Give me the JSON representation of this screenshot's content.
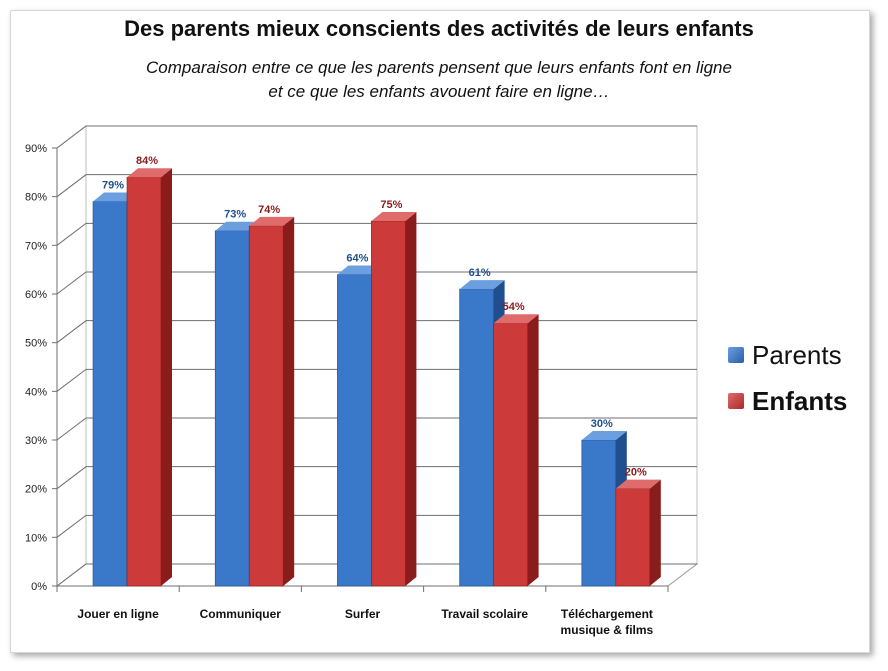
{
  "chart_data": {
    "type": "bar",
    "title": "Des parents mieux conscients des activités de leurs enfants",
    "subtitle_line1": "Comparaison entre ce que les parents pensent que leurs enfants font en ligne",
    "subtitle_line2": "et ce que les enfants avouent faire en ligne…",
    "categories": [
      [
        "Jouer en ligne"
      ],
      [
        "Communiquer"
      ],
      [
        "Surfer"
      ],
      [
        "Travail scolaire"
      ],
      [
        "Téléchargement",
        "musique & films"
      ]
    ],
    "series": [
      {
        "name": "Parents",
        "values": [
          79,
          73,
          64,
          61,
          30
        ],
        "labels": [
          "79%",
          "73%",
          "64%",
          "61%",
          "30%"
        ],
        "color": "#3a78c9",
        "side_color": "#1f4f8e",
        "top_color": "#6b9fe0",
        "label_color": "#1f4f8e"
      },
      {
        "name": "Enfants",
        "values": [
          84,
          74,
          75,
          54,
          20
        ],
        "labels": [
          "84%",
          "74%",
          "75%",
          "54%",
          "20%"
        ],
        "color": "#cc3a3a",
        "side_color": "#8a1c1c",
        "top_color": "#e06b6b",
        "label_color": "#8a1c1c"
      }
    ],
    "ylim": [
      0,
      90
    ],
    "yticks": [
      "0%",
      "10%",
      "20%",
      "30%",
      "40%",
      "50%",
      "60%",
      "70%",
      "80%",
      "90%"
    ],
    "grid": true,
    "legend_position": "right"
  },
  "legend": {
    "parents_label": "Parents",
    "enfants_label": "Enfants"
  }
}
